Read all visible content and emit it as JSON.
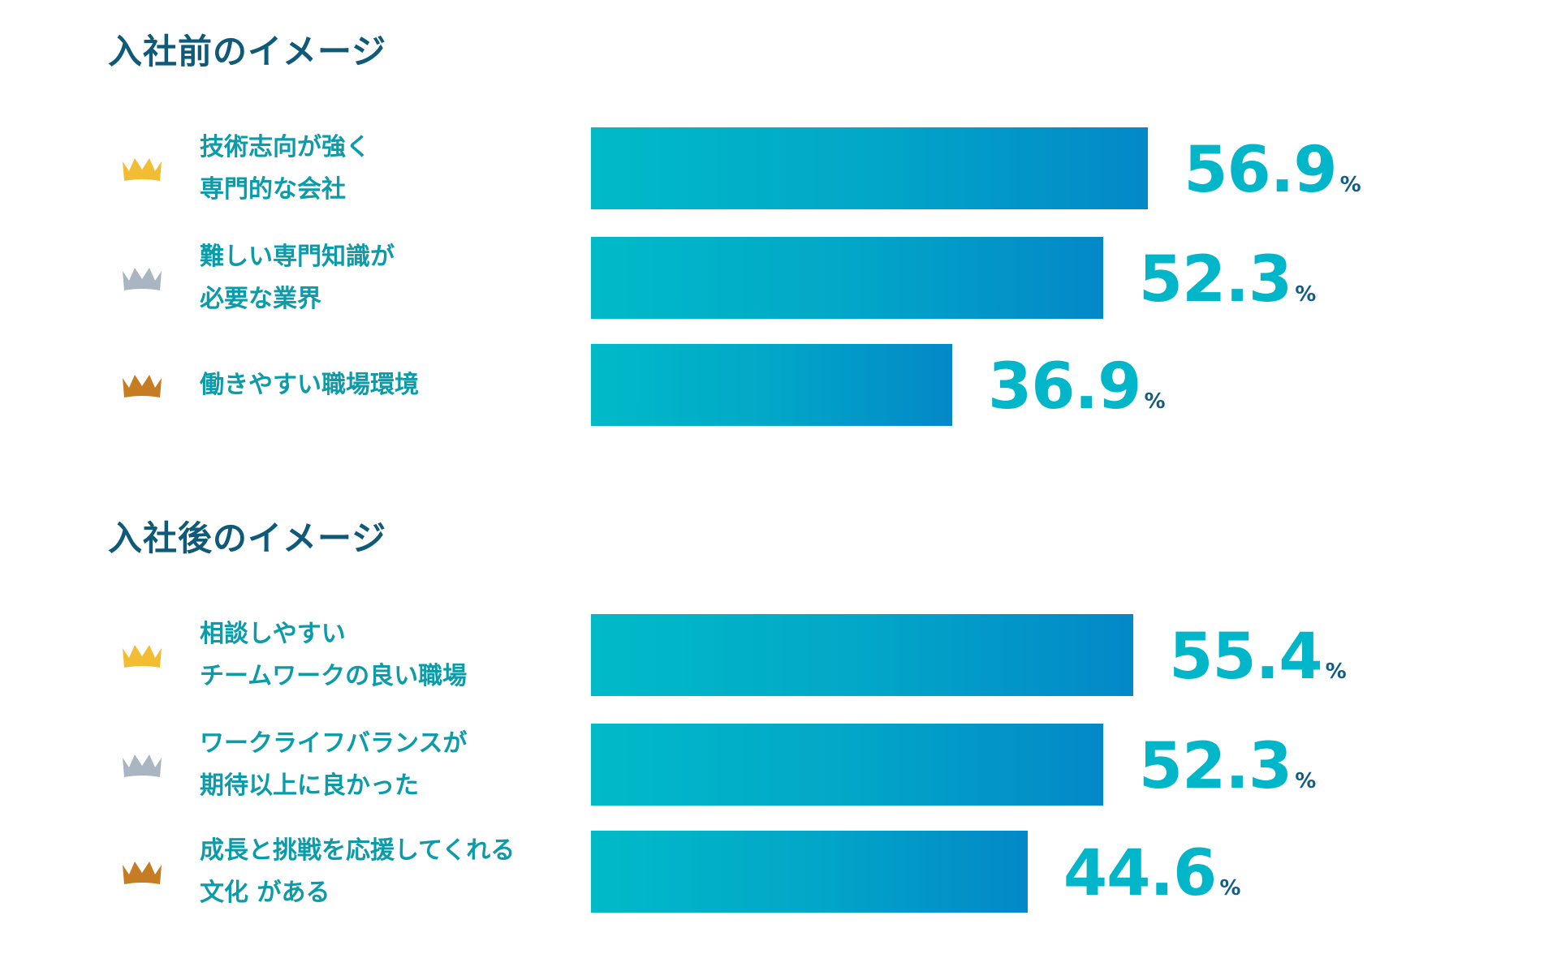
{
  "colors": {
    "gold": "#f3bd33",
    "silver": "#aab5c2",
    "bronze": "#c57c23",
    "bar_start": "#00bac8",
    "bar_end": "#0388c8"
  },
  "chart_data": [
    {
      "type": "bar",
      "orientation": "horizontal",
      "title": "入社前のイメージ",
      "unit": "%",
      "xlim": [
        0,
        100
      ],
      "categories": [
        [
          "技術志向が強く",
          "専門的な会社"
        ],
        [
          "難しい専門知識が",
          "必要な業界"
        ],
        [
          "働きやすい職場環境"
        ]
      ],
      "ranks": [
        "gold",
        "silver",
        "bronze"
      ],
      "values": [
        56.9,
        52.3,
        36.9
      ],
      "value_labels": [
        "56.9",
        "52.3",
        "36.9"
      ]
    },
    {
      "type": "bar",
      "orientation": "horizontal",
      "title": "入社後のイメージ",
      "unit": "%",
      "xlim": [
        0,
        100
      ],
      "categories": [
        [
          "相談しやすい",
          "チームワークの良い職場"
        ],
        [
          "ワークライフバランスが",
          "期待以上に良かった"
        ],
        [
          "成長と挑戦を応援してくれる",
          "文化 がある"
        ]
      ],
      "ranks": [
        "gold",
        "silver",
        "bronze"
      ],
      "values": [
        55.4,
        52.3,
        44.6
      ],
      "value_labels": [
        "55.4",
        "52.3",
        "44.6"
      ]
    }
  ]
}
